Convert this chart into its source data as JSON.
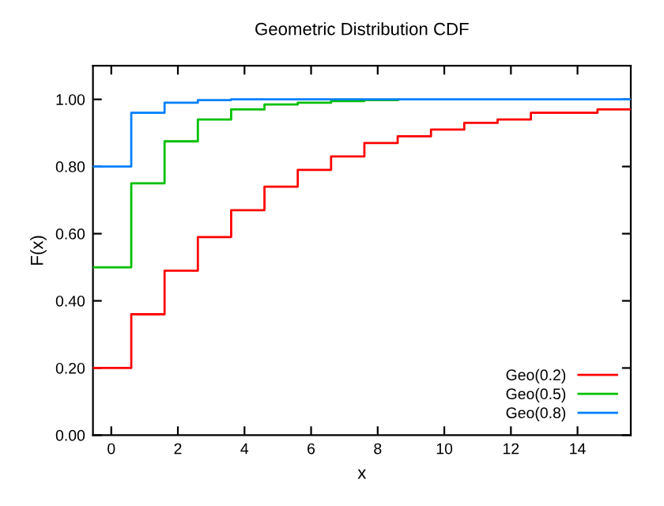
{
  "chart_data": {
    "type": "step",
    "title": "Geometric Distribution CDF",
    "xlabel": "x",
    "ylabel": "F(x)",
    "series": [
      {
        "name": "Geo(0.2)",
        "color": "#ff0000",
        "x": [
          -0.55,
          0.6,
          1.6,
          2.6,
          3.6,
          4.6,
          5.6,
          6.6,
          7.6,
          8.6,
          9.6,
          10.6,
          11.6,
          12.6,
          13.6,
          14.6,
          15.6
        ],
        "values": [
          0.2,
          0.36,
          0.49,
          0.59,
          0.67,
          0.74,
          0.79,
          0.83,
          0.87,
          0.89,
          0.91,
          0.93,
          0.94,
          0.96,
          0.96,
          0.97,
          0.97
        ]
      },
      {
        "name": "Geo(0.5)",
        "color": "#00c000",
        "x": [
          -0.55,
          0.6,
          1.6,
          2.6,
          3.6,
          4.6,
          5.6,
          6.6,
          7.6,
          8.6
        ],
        "values": [
          0.5,
          0.75,
          0.875,
          0.94,
          0.97,
          0.985,
          0.99,
          0.995,
          0.998,
          0.998
        ]
      },
      {
        "name": "Geo(0.8)",
        "color": "#0080ff",
        "x": [
          -0.55,
          0.6,
          1.6,
          2.6,
          3.6,
          15.6
        ],
        "values": [
          0.8,
          0.96,
          0.99,
          0.998,
          1.0,
          1.0
        ]
      }
    ],
    "xlim": [
      -0.55,
      15.6
    ],
    "ylim": [
      0,
      1.1
    ],
    "xticks": [
      0,
      2,
      4,
      6,
      8,
      10,
      12,
      14
    ],
    "yticks": [
      {
        "value": 0,
        "label": "0.00"
      },
      {
        "value": 0.2,
        "label": "0.20"
      },
      {
        "value": 0.4,
        "label": "0.40"
      },
      {
        "value": 0.6,
        "label": "0.60"
      },
      {
        "value": 0.8,
        "label": "0.80"
      },
      {
        "value": 1.0,
        "label": "1.00"
      }
    ],
    "legend": "bottom right",
    "grid": false
  }
}
